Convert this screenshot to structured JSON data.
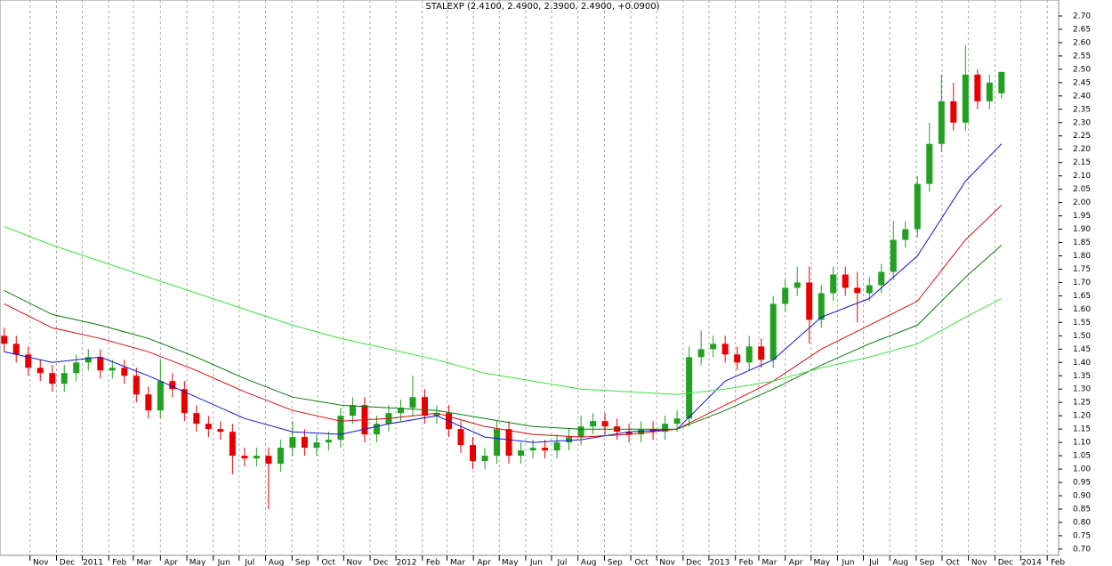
{
  "chart_data": {
    "type": "candlestick",
    "title": "STALEXP (2.4100, 2.4900, 2.3900, 2.4900, +0.0900)",
    "up_color": "#22a022",
    "down_color": "#e80000",
    "xlim": [
      -0.7,
      175.5
    ],
    "ylim": [
      0.663,
      2.76
    ],
    "grid": true,
    "xticks": [
      {
        "value": 4.3,
        "label": "Nov"
      },
      {
        "value": 8.7,
        "label": "Dec"
      },
      {
        "value": 13,
        "label": "2011"
      },
      {
        "value": 17.4,
        "label": "Feb"
      },
      {
        "value": 21.5,
        "label": "Mar"
      },
      {
        "value": 26,
        "label": "Apr"
      },
      {
        "value": 30.4,
        "label": "May"
      },
      {
        "value": 34.8,
        "label": "Jun"
      },
      {
        "value": 39.1,
        "label": "Jul"
      },
      {
        "value": 43.5,
        "label": "Aug"
      },
      {
        "value": 47.9,
        "label": "Sep"
      },
      {
        "value": 52.2,
        "label": "Oct"
      },
      {
        "value": 56.5,
        "label": "Nov"
      },
      {
        "value": 60.9,
        "label": "Dec"
      },
      {
        "value": 65.2,
        "label": "2012"
      },
      {
        "value": 69.6,
        "label": "Feb"
      },
      {
        "value": 73.7,
        "label": "Mar"
      },
      {
        "value": 78.1,
        "label": "Apr"
      },
      {
        "value": 82.4,
        "label": "May"
      },
      {
        "value": 86.8,
        "label": "Jun"
      },
      {
        "value": 91.1,
        "label": "Jul"
      },
      {
        "value": 95.5,
        "label": "Aug"
      },
      {
        "value": 99.9,
        "label": "Sep"
      },
      {
        "value": 104.3,
        "label": "Oct"
      },
      {
        "value": 108.6,
        "label": "Nov"
      },
      {
        "value": 113,
        "label": "Dec"
      },
      {
        "value": 117.3,
        "label": "2013"
      },
      {
        "value": 121.7,
        "label": "Feb"
      },
      {
        "value": 125.6,
        "label": "Mar"
      },
      {
        "value": 130,
        "label": "Apr"
      },
      {
        "value": 134.3,
        "label": "May"
      },
      {
        "value": 138.7,
        "label": "Jun"
      },
      {
        "value": 143,
        "label": "Jul"
      },
      {
        "value": 147.4,
        "label": "Aug"
      },
      {
        "value": 151.8,
        "label": "Sep"
      },
      {
        "value": 156.1,
        "label": "Oct"
      },
      {
        "value": 160.5,
        "label": "Nov"
      },
      {
        "value": 164.9,
        "label": "Dec"
      },
      {
        "value": 169.2,
        "label": "2014"
      },
      {
        "value": 173.6,
        "label": "Feb"
      }
    ],
    "yticks": [
      {
        "value": 0.7,
        "label": "0.70"
      },
      {
        "value": 0.75,
        "label": "0.75"
      },
      {
        "value": 0.8,
        "label": "0.80"
      },
      {
        "value": 0.85,
        "label": "0.85"
      },
      {
        "value": 0.9,
        "label": "0.90"
      },
      {
        "value": 0.95,
        "label": "0.95"
      },
      {
        "value": 1.0,
        "label": "1.00"
      },
      {
        "value": 1.05,
        "label": "1.05"
      },
      {
        "value": 1.1,
        "label": "1.10"
      },
      {
        "value": 1.15,
        "label": "1.15"
      },
      {
        "value": 1.2,
        "label": "1.20"
      },
      {
        "value": 1.25,
        "label": "1.25"
      },
      {
        "value": 1.3,
        "label": "1.30"
      },
      {
        "value": 1.35,
        "label": "1.35"
      },
      {
        "value": 1.4,
        "label": "1.40"
      },
      {
        "value": 1.45,
        "label": "1.45"
      },
      {
        "value": 1.5,
        "label": "1.50"
      },
      {
        "value": 1.55,
        "label": "1.55"
      },
      {
        "value": 1.6,
        "label": "1.60"
      },
      {
        "value": 1.65,
        "label": "1.65"
      },
      {
        "value": 1.7,
        "label": "1.70"
      },
      {
        "value": 1.75,
        "label": "1.75"
      },
      {
        "value": 1.8,
        "label": "1.80"
      },
      {
        "value": 1.85,
        "label": "1.85"
      },
      {
        "value": 1.9,
        "label": "1.90"
      },
      {
        "value": 1.95,
        "label": "1.95"
      },
      {
        "value": 2.0,
        "label": "2.00"
      },
      {
        "value": 2.05,
        "label": "2.05"
      },
      {
        "value": 2.1,
        "label": "2.10"
      },
      {
        "value": 2.15,
        "label": "2.15"
      },
      {
        "value": 2.2,
        "label": "2.20"
      },
      {
        "value": 2.25,
        "label": "2.25"
      },
      {
        "value": 2.3,
        "label": "2.30"
      },
      {
        "value": 2.35,
        "label": "2.35"
      },
      {
        "value": 2.4,
        "label": "2.40"
      },
      {
        "value": 2.45,
        "label": "2.45"
      },
      {
        "value": 2.5,
        "label": "2.50"
      },
      {
        "value": 2.55,
        "label": "2.55"
      },
      {
        "value": 2.6,
        "label": "2.60"
      },
      {
        "value": 2.65,
        "label": "2.65"
      },
      {
        "value": 2.7,
        "label": "2.70"
      }
    ],
    "x": [
      0,
      2,
      4,
      6,
      8,
      10,
      12,
      14,
      16,
      18,
      20,
      22,
      24,
      26,
      28,
      30,
      32,
      34,
      36,
      38,
      40,
      42,
      44,
      46,
      48,
      50,
      52,
      54,
      56,
      58,
      60,
      62,
      64,
      66,
      68,
      70,
      72,
      74,
      76,
      78,
      80,
      82,
      84,
      86,
      88,
      90,
      92,
      94,
      96,
      98,
      100,
      102,
      104,
      106,
      108,
      110,
      112,
      114,
      116,
      118,
      120,
      122,
      124,
      126,
      128,
      130,
      132,
      134,
      136,
      138,
      140,
      142,
      144,
      146,
      148,
      150,
      152,
      154,
      156,
      158,
      160,
      162,
      164,
      166
    ],
    "open": [
      1.5,
      1.47,
      1.43,
      1.38,
      1.36,
      1.32,
      1.36,
      1.4,
      1.42,
      1.37,
      1.38,
      1.35,
      1.28,
      1.22,
      1.33,
      1.3,
      1.21,
      1.17,
      1.15,
      1.14,
      1.05,
      1.04,
      1.05,
      1.02,
      1.08,
      1.12,
      1.08,
      1.1,
      1.11,
      1.2,
      1.24,
      1.13,
      1.17,
      1.21,
      1.23,
      1.27,
      1.2,
      1.21,
      1.15,
      1.09,
      1.03,
      1.05,
      1.15,
      1.05,
      1.07,
      1.08,
      1.07,
      1.1,
      1.12,
      1.16,
      1.18,
      1.16,
      1.14,
      1.13,
      1.15,
      1.14,
      1.17,
      1.19,
      1.42,
      1.45,
      1.47,
      1.43,
      1.4,
      1.46,
      1.41,
      1.62,
      1.68,
      1.7,
      1.56,
      1.66,
      1.73,
      1.68,
      1.66,
      1.69,
      1.74,
      1.86,
      1.9,
      2.07,
      2.22,
      2.38,
      2.3,
      2.48,
      2.38,
      2.41
    ],
    "high": [
      1.53,
      1.5,
      1.46,
      1.41,
      1.39,
      1.39,
      1.43,
      1.45,
      1.45,
      1.41,
      1.41,
      1.38,
      1.31,
      1.41,
      1.36,
      1.33,
      1.24,
      1.2,
      1.18,
      1.17,
      1.08,
      1.08,
      1.08,
      1.11,
      1.18,
      1.15,
      1.13,
      1.14,
      1.23,
      1.27,
      1.27,
      1.2,
      1.24,
      1.26,
      1.35,
      1.3,
      1.24,
      1.24,
      1.18,
      1.12,
      1.08,
      1.18,
      1.18,
      1.1,
      1.11,
      1.11,
      1.13,
      1.15,
      1.2,
      1.21,
      1.21,
      1.19,
      1.17,
      1.18,
      1.18,
      1.2,
      1.22,
      1.46,
      1.52,
      1.5,
      1.5,
      1.46,
      1.5,
      1.49,
      1.65,
      1.71,
      1.76,
      1.76,
      1.69,
      1.76,
      1.76,
      1.74,
      1.72,
      1.77,
      1.93,
      1.93,
      2.1,
      2.3,
      2.48,
      2.45,
      2.59,
      2.5,
      2.48,
      2.49
    ],
    "low": [
      1.44,
      1.4,
      1.35,
      1.33,
      1.29,
      1.29,
      1.33,
      1.37,
      1.34,
      1.34,
      1.32,
      1.25,
      1.19,
      1.19,
      1.27,
      1.18,
      1.14,
      1.12,
      1.11,
      0.98,
      1.01,
      1.01,
      0.85,
      0.99,
      1.05,
      1.05,
      1.05,
      1.07,
      1.08,
      1.17,
      1.1,
      1.1,
      1.14,
      1.18,
      1.2,
      1.17,
      1.17,
      1.12,
      1.06,
      1.0,
      1.0,
      1.02,
      1.02,
      1.02,
      1.04,
      1.04,
      1.04,
      1.07,
      1.09,
      1.13,
      1.13,
      1.11,
      1.1,
      1.1,
      1.11,
      1.11,
      1.14,
      1.16,
      1.39,
      1.42,
      1.4,
      1.37,
      1.37,
      1.38,
      1.38,
      1.59,
      1.65,
      1.47,
      1.53,
      1.63,
      1.65,
      1.55,
      1.63,
      1.66,
      1.71,
      1.83,
      1.87,
      2.04,
      2.19,
      2.27,
      2.27,
      2.35,
      2.35,
      2.39
    ],
    "close": [
      1.47,
      1.43,
      1.38,
      1.36,
      1.32,
      1.36,
      1.4,
      1.42,
      1.37,
      1.38,
      1.35,
      1.28,
      1.22,
      1.33,
      1.3,
      1.21,
      1.17,
      1.15,
      1.14,
      1.05,
      1.04,
      1.05,
      1.02,
      1.08,
      1.12,
      1.08,
      1.1,
      1.11,
      1.2,
      1.24,
      1.13,
      1.17,
      1.21,
      1.23,
      1.27,
      1.2,
      1.21,
      1.15,
      1.09,
      1.03,
      1.05,
      1.15,
      1.05,
      1.07,
      1.08,
      1.07,
      1.1,
      1.12,
      1.16,
      1.18,
      1.16,
      1.14,
      1.13,
      1.15,
      1.14,
      1.17,
      1.19,
      1.42,
      1.45,
      1.47,
      1.43,
      1.4,
      1.46,
      1.41,
      1.62,
      1.68,
      1.7,
      1.56,
      1.66,
      1.73,
      1.68,
      1.66,
      1.69,
      1.74,
      1.86,
      1.9,
      2.07,
      2.22,
      2.38,
      2.3,
      2.48,
      2.38,
      2.45,
      2.49
    ],
    "line_x": [
      0,
      8,
      16,
      24,
      32,
      40,
      48,
      56,
      64,
      72,
      80,
      88,
      96,
      104,
      112,
      120,
      128,
      136,
      144,
      152,
      160,
      166
    ],
    "lines": [
      {
        "color": "#1515d0",
        "values": [
          1.44,
          1.4,
          1.42,
          1.35,
          1.27,
          1.19,
          1.14,
          1.13,
          1.17,
          1.2,
          1.12,
          1.1,
          1.11,
          1.14,
          1.15,
          1.33,
          1.41,
          1.57,
          1.64,
          1.8,
          2.08,
          2.22
        ]
      },
      {
        "color": "#d01010",
        "values": [
          1.62,
          1.53,
          1.49,
          1.44,
          1.37,
          1.29,
          1.22,
          1.18,
          1.19,
          1.21,
          1.16,
          1.13,
          1.12,
          1.13,
          1.15,
          1.24,
          1.33,
          1.45,
          1.54,
          1.63,
          1.86,
          1.99
        ]
      },
      {
        "color": "#0a7a0a",
        "values": [
          1.67,
          1.58,
          1.54,
          1.49,
          1.42,
          1.34,
          1.27,
          1.24,
          1.23,
          1.22,
          1.19,
          1.16,
          1.15,
          1.15,
          1.15,
          1.22,
          1.3,
          1.39,
          1.47,
          1.54,
          1.72,
          1.84
        ]
      },
      {
        "color": "#3ee03e",
        "values": [
          1.91,
          1.84,
          1.78,
          1.72,
          1.66,
          1.6,
          1.54,
          1.49,
          1.45,
          1.41,
          1.36,
          1.33,
          1.3,
          1.29,
          1.28,
          1.3,
          1.33,
          1.38,
          1.42,
          1.47,
          1.57,
          1.64
        ]
      }
    ]
  }
}
